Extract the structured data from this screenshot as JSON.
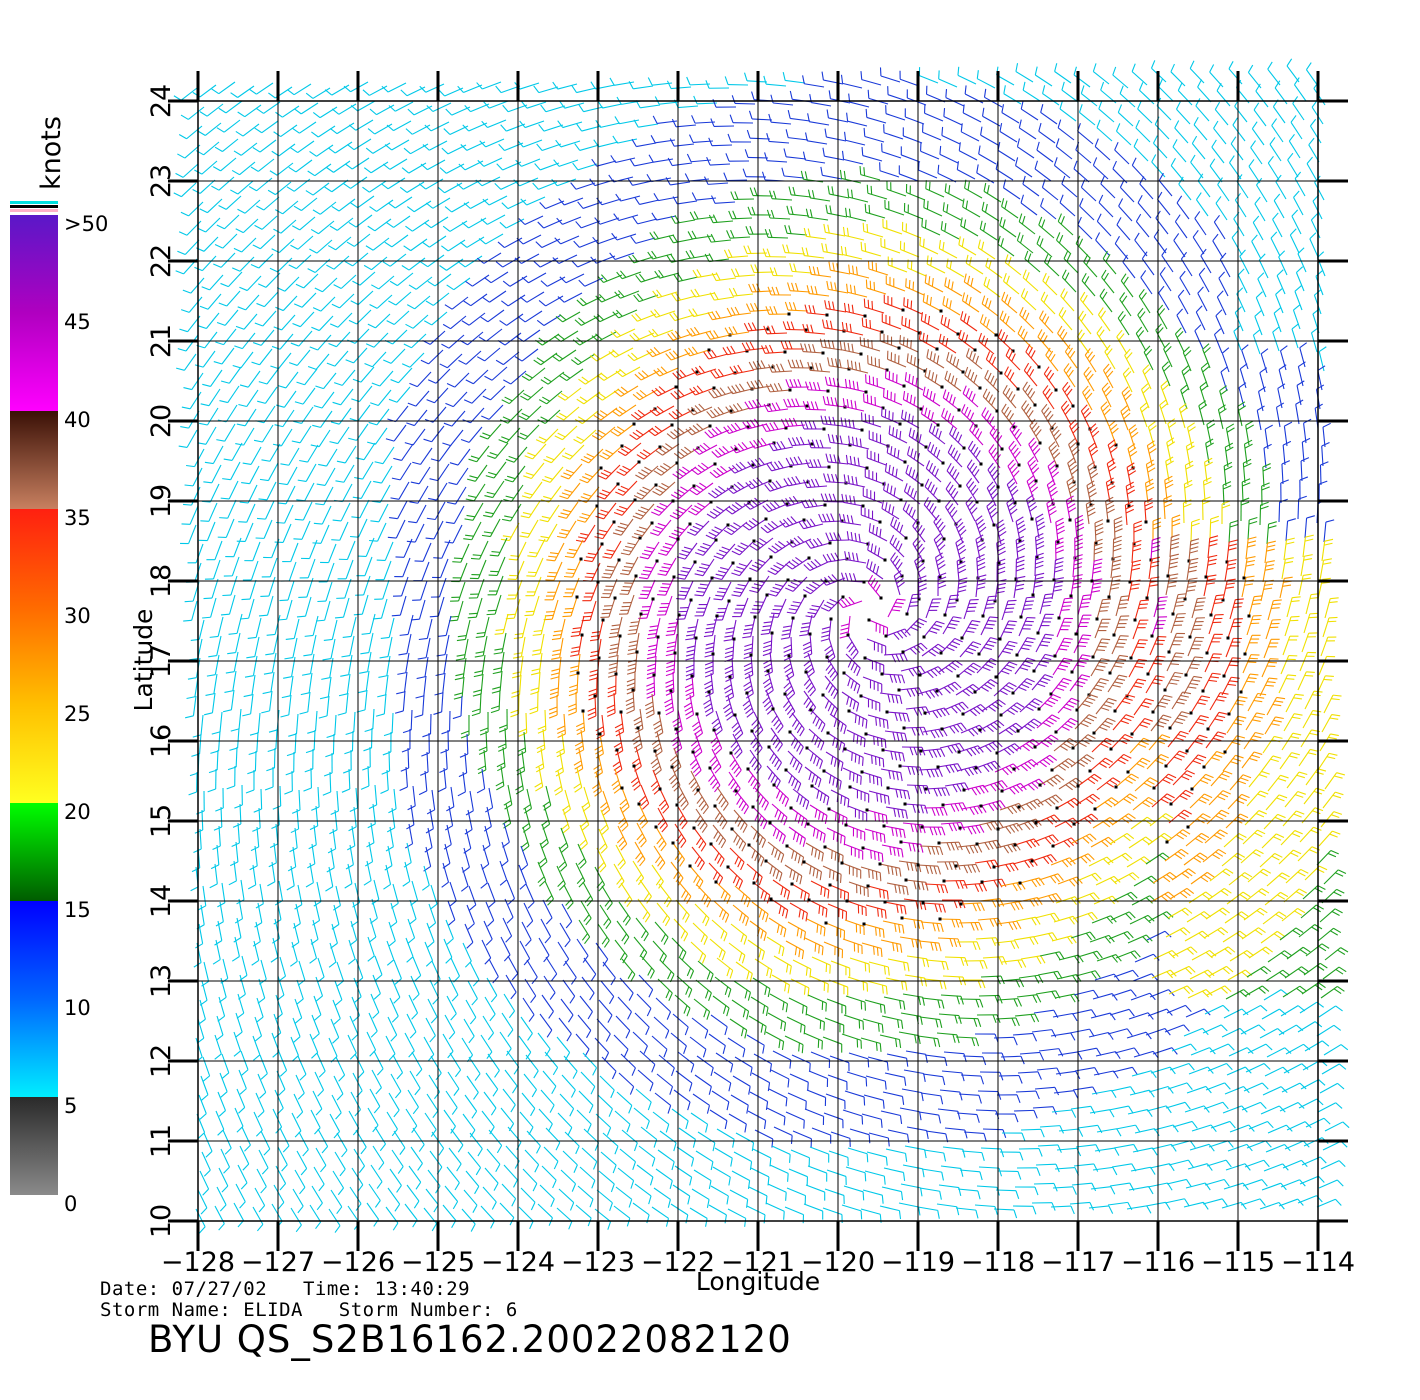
{
  "plot": {
    "xlabel": "Longitude",
    "ylabel": "Latitude",
    "x_ticks": [
      "-128",
      "-127",
      "-126",
      "-125",
      "-124",
      "-123",
      "-122",
      "-121",
      "-120",
      "-119",
      "-118",
      "-117",
      "-116",
      "-115",
      "-114"
    ],
    "y_ticks": [
      "10",
      "11",
      "12",
      "13",
      "14",
      "15",
      "16",
      "17",
      "18",
      "19",
      "20",
      "21",
      "22",
      "23",
      "24"
    ]
  },
  "colorbar": {
    "unit": "knots",
    "ticks": [
      ">50",
      "45",
      "40",
      "35",
      "30",
      "25",
      "20",
      "15",
      "10",
      "5",
      "0"
    ],
    "colors": [
      "#7a7a7a",
      "#3a3a3a",
      "#00e5ff",
      "#0077ff",
      "#0000ee",
      "#007a00",
      "#00ff00",
      "#ffff20",
      "#ffc000",
      "#ff7000",
      "#ff2a10",
      "#ff0000",
      "#c07850",
      "#3a1408",
      "#ff00ff",
      "#b400c8",
      "#6a14c0"
    ]
  },
  "storm_center": {
    "lon": -119.6,
    "lat": 17.6
  },
  "info": {
    "date_line": "Date: 07/27/02   Time: 13:40:29",
    "storm_line": "Storm Name: ELIDA   Storm Number: 6",
    "product": "BYU QS_S2B16162.20022082120"
  }
}
